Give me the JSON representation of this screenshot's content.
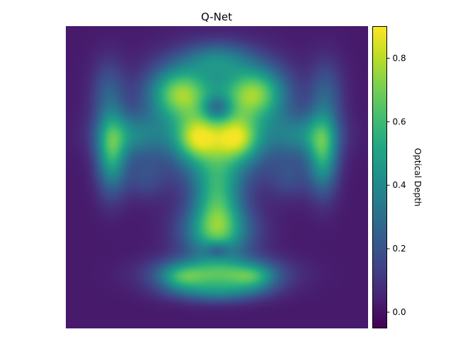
{
  "chart_data": {
    "type": "heatmap",
    "title": "Q-Net",
    "xlabel": "",
    "ylabel": "",
    "axes_visible": false,
    "grid": false,
    "colormap": "viridis",
    "colorbar": {
      "label": "Optical Depth",
      "range": [
        -0.05,
        0.9
      ],
      "ticks": [
        0.0,
        0.2,
        0.4,
        0.6,
        0.8
      ],
      "tick_labels": [
        "0.0",
        "0.2",
        "0.4",
        "0.6",
        "0.8"
      ],
      "location": "right"
    },
    "background_value": 0.02,
    "blobs": [
      {
        "x": 0.375,
        "y": 0.22,
        "sx": 0.07,
        "sy": 0.06,
        "v": 0.55
      },
      {
        "x": 0.625,
        "y": 0.22,
        "sx": 0.07,
        "sy": 0.06,
        "v": 0.55
      },
      {
        "x": 0.5,
        "y": 0.11,
        "sx": 0.08,
        "sy": 0.04,
        "v": 0.28
      },
      {
        "x": 0.43,
        "y": 0.37,
        "sx": 0.05,
        "sy": 0.05,
        "v": 0.42
      },
      {
        "x": 0.57,
        "y": 0.37,
        "sx": 0.05,
        "sy": 0.05,
        "v": 0.42
      },
      {
        "x": 0.5,
        "y": 0.4,
        "sx": 0.1,
        "sy": 0.1,
        "v": 0.3
      },
      {
        "x": 0.5,
        "y": 0.28,
        "sx": 0.16,
        "sy": 0.12,
        "v": 0.25
      },
      {
        "x": 0.5,
        "y": 0.27,
        "sx": 0.035,
        "sy": 0.03,
        "v": -0.3
      },
      {
        "x": 0.15,
        "y": 0.42,
        "sx": 0.035,
        "sy": 0.09,
        "v": 0.48
      },
      {
        "x": 0.85,
        "y": 0.42,
        "sx": 0.035,
        "sy": 0.09,
        "v": 0.48
      },
      {
        "x": 0.14,
        "y": 0.22,
        "sx": 0.04,
        "sy": 0.08,
        "v": 0.18
      },
      {
        "x": 0.86,
        "y": 0.22,
        "sx": 0.04,
        "sy": 0.08,
        "v": 0.18
      },
      {
        "x": 0.22,
        "y": 0.36,
        "sx": 0.08,
        "sy": 0.05,
        "v": 0.3
      },
      {
        "x": 0.78,
        "y": 0.36,
        "sx": 0.08,
        "sy": 0.05,
        "v": 0.3
      },
      {
        "x": 0.26,
        "y": 0.5,
        "sx": 0.05,
        "sy": 0.05,
        "v": 0.14
      },
      {
        "x": 0.74,
        "y": 0.5,
        "sx": 0.05,
        "sy": 0.05,
        "v": 0.14
      },
      {
        "x": 0.5,
        "y": 0.58,
        "sx": 0.055,
        "sy": 0.1,
        "v": 0.45
      },
      {
        "x": 0.5,
        "y": 0.68,
        "sx": 0.085,
        "sy": 0.06,
        "v": 0.42
      },
      {
        "x": 0.5,
        "y": 0.82,
        "sx": 0.13,
        "sy": 0.04,
        "v": 0.55
      },
      {
        "x": 0.38,
        "y": 0.83,
        "sx": 0.05,
        "sy": 0.03,
        "v": 0.25
      },
      {
        "x": 0.62,
        "y": 0.83,
        "sx": 0.05,
        "sy": 0.03,
        "v": 0.25
      },
      {
        "x": 0.5,
        "y": 0.88,
        "sx": 0.1,
        "sy": 0.025,
        "v": 0.22
      },
      {
        "x": 0.5,
        "y": 0.74,
        "sx": 0.03,
        "sy": 0.02,
        "v": -0.2
      }
    ]
  }
}
